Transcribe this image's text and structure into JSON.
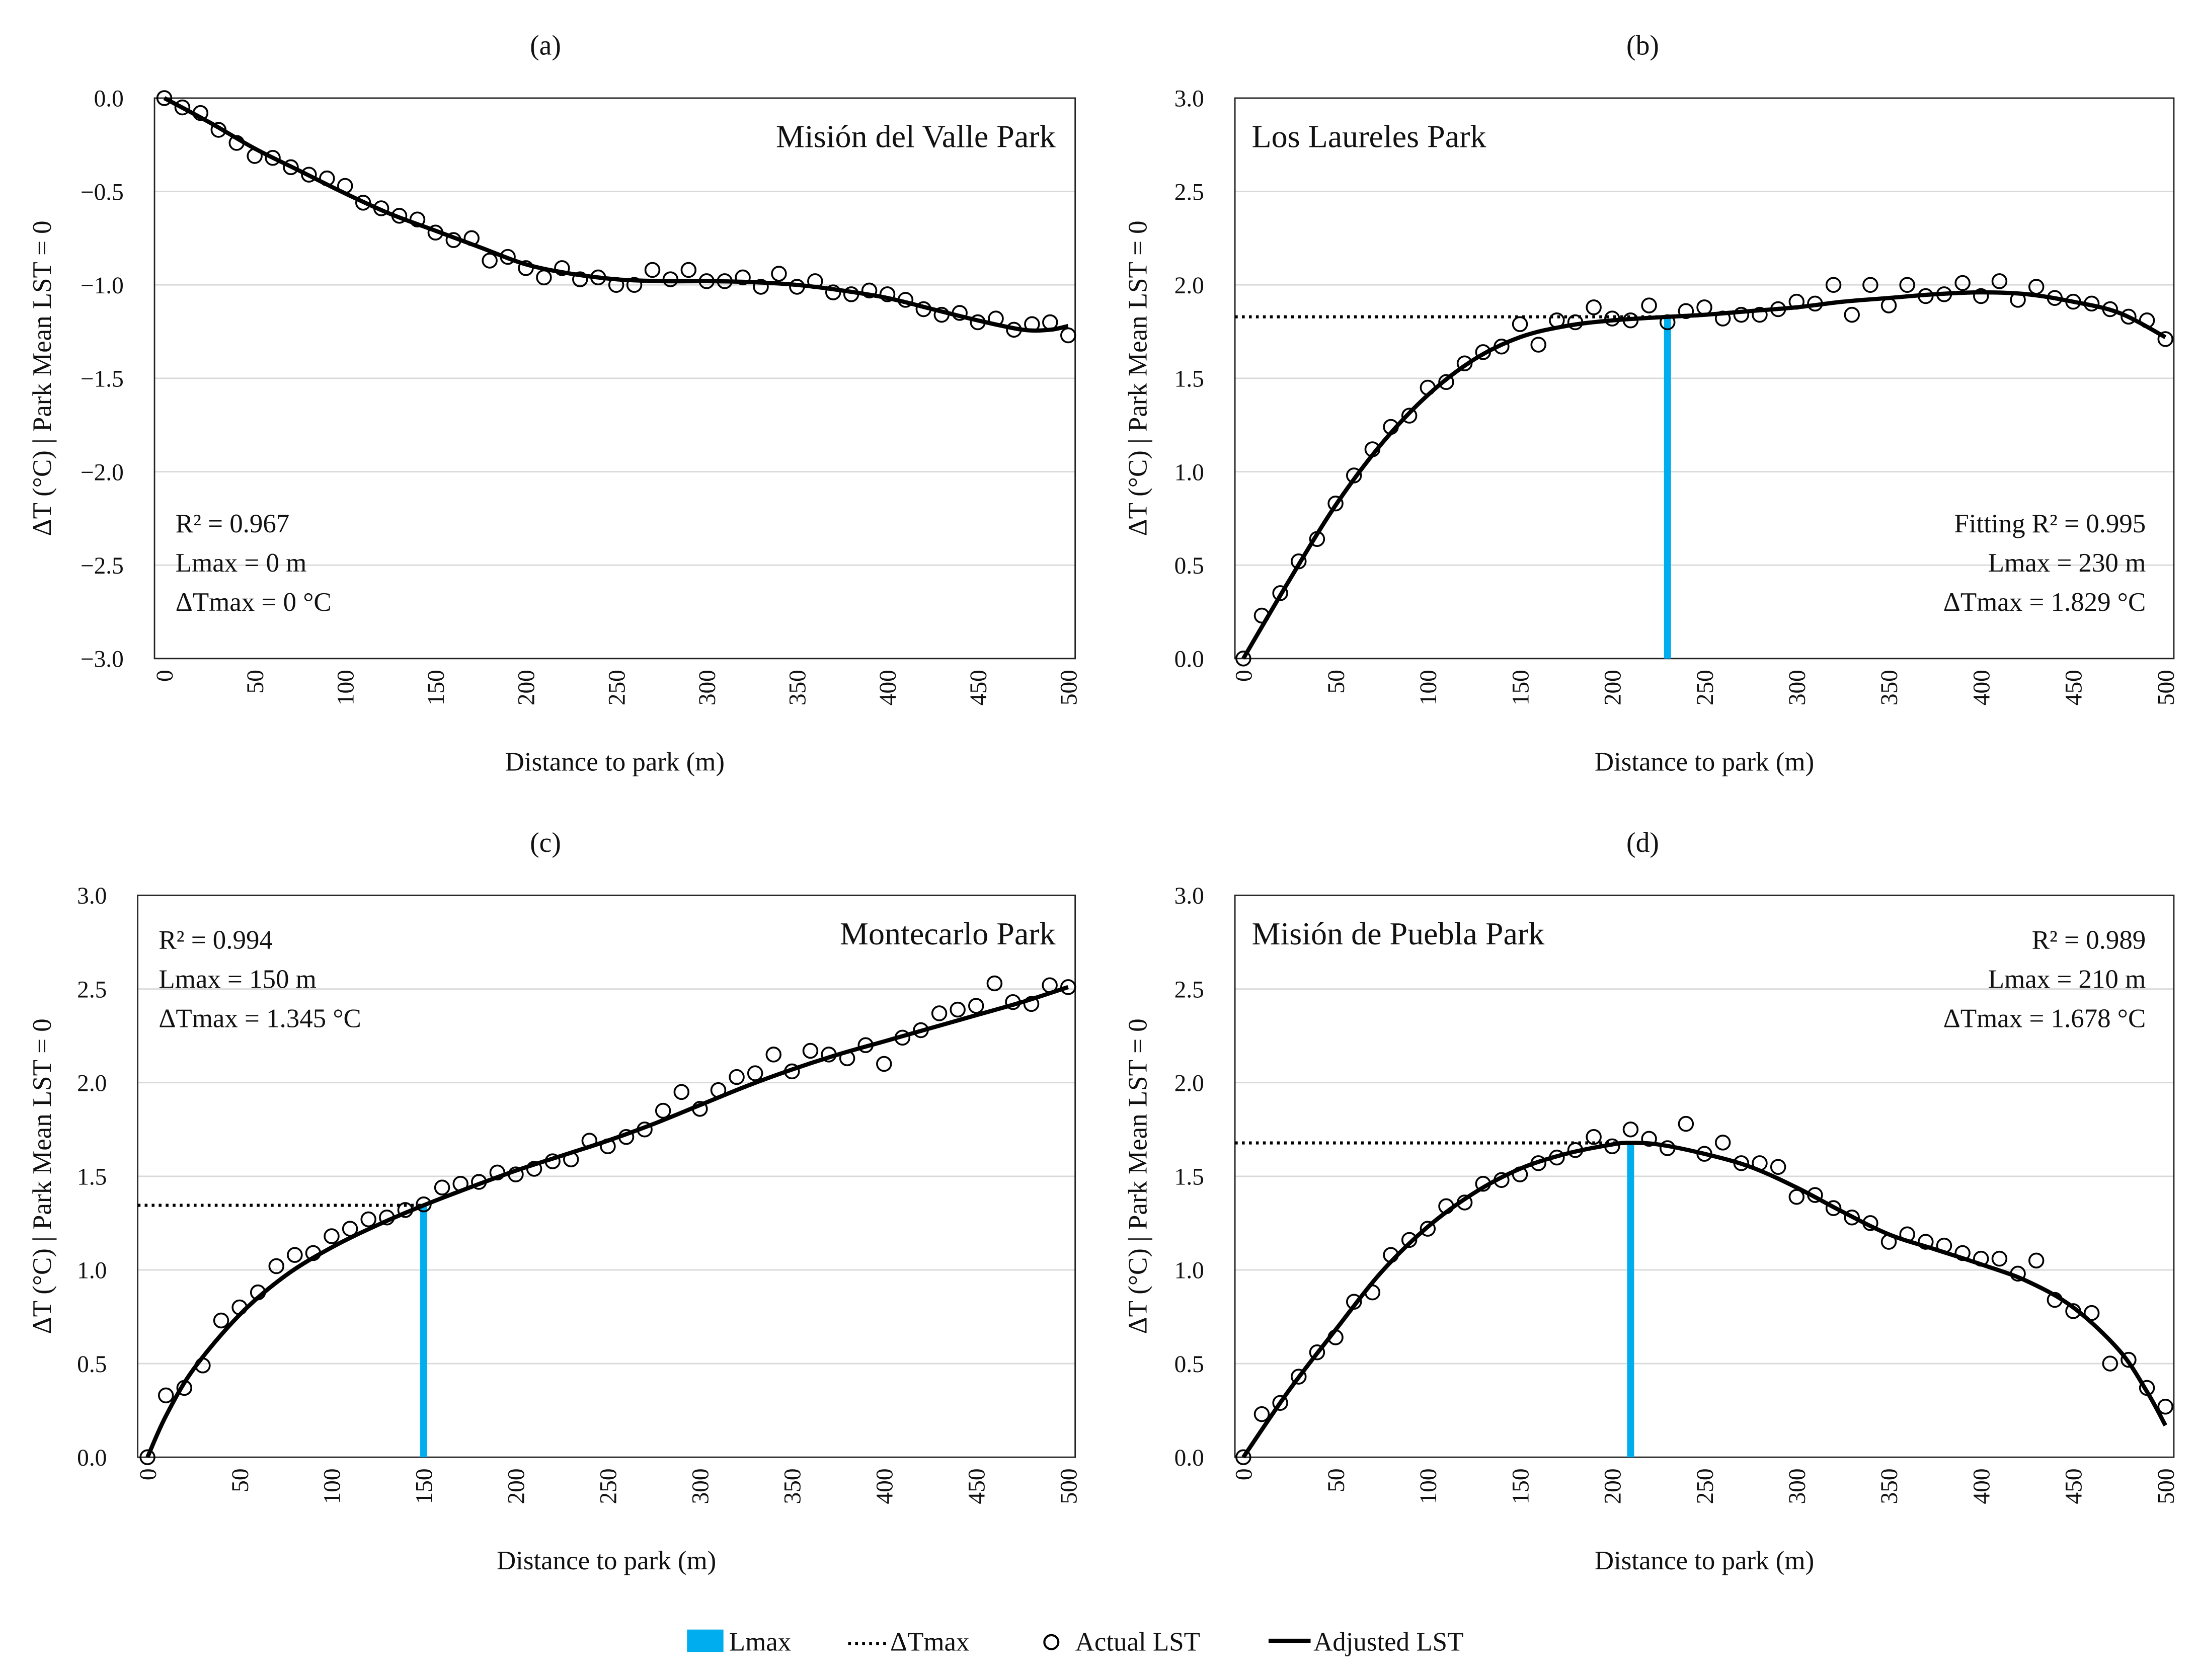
{
  "colors": {
    "lmax": "#00AEEF",
    "line": "#000000",
    "grid": "#D9D9D9"
  },
  "legend": [
    {
      "label": "Lmax",
      "kind": "bar"
    },
    {
      "label": "ΔTmax",
      "kind": "dotted"
    },
    {
      "label": "Actual LST",
      "kind": "marker"
    },
    {
      "label": "Adjusted LST",
      "kind": "line"
    }
  ],
  "chart_data": [
    {
      "type": "scatter",
      "panel": "(a)",
      "title": "Misión del Valle Park",
      "xlabel": "Distance to park (m)",
      "ylabel": "ΔT (°C) | Park Mean LST = 0",
      "xlim": [
        0,
        500
      ],
      "ylim": [
        -3.0,
        0.0
      ],
      "xticks": [
        "0",
        "50",
        "100",
        "150",
        "200",
        "250",
        "300",
        "350",
        "400",
        "450",
        "500"
      ],
      "yticks": [
        "0.0",
        "−0.5",
        "−1.0",
        "−1.5",
        "−2.0",
        "−2.5",
        "−3.0"
      ],
      "ytick_values": [
        0,
        -0.5,
        -1,
        -1.5,
        -2,
        -2.5,
        -3
      ],
      "stats": [
        "R² = 0.967",
        "Lmax = 0 m",
        "ΔTmax = 0 °C"
      ],
      "stats_position": "bottom-left",
      "title_position": "top-right",
      "lmax": 0,
      "dtmax": 0,
      "show_lmax": false,
      "x_step": 10,
      "actual": [
        0,
        -0.05,
        -0.08,
        -0.17,
        -0.24,
        -0.31,
        -0.32,
        -0.37,
        -0.41,
        -0.43,
        -0.47,
        -0.56,
        -0.59,
        -0.63,
        -0.65,
        -0.72,
        -0.76,
        -0.75,
        -0.87,
        -0.85,
        -0.91,
        -0.96,
        -0.91,
        -0.97,
        -0.96,
        -1.0,
        -1.0,
        -0.92,
        -0.97,
        -0.92,
        -0.98,
        -0.98,
        -0.96,
        -1.01,
        -0.94,
        -1.01,
        -0.98,
        -1.04,
        -1.05,
        -1.03,
        -1.05,
        -1.08,
        -1.13,
        -1.16,
        -1.15,
        -1.2,
        -1.18,
        -1.24,
        -1.21,
        -1.2,
        -1.27
      ],
      "fit_x": [
        0,
        25,
        50,
        75,
        100,
        125,
        150,
        175,
        200,
        225,
        250,
        275,
        300,
        325,
        350,
        375,
        400,
        425,
        450,
        475,
        490,
        500
      ],
      "fit_y": [
        0,
        -0.13,
        -0.27,
        -0.39,
        -0.51,
        -0.62,
        -0.71,
        -0.8,
        -0.89,
        -0.94,
        -0.97,
        -0.98,
        -0.98,
        -0.985,
        -1.0,
        -1.03,
        -1.07,
        -1.13,
        -1.19,
        -1.24,
        -1.24,
        -1.22
      ]
    },
    {
      "type": "scatter",
      "panel": "(b)",
      "title": "Los Laureles Park",
      "xlabel": "Distance to park (m)",
      "ylabel": "ΔT (°C) | Park Mean LST = 0",
      "xlim": [
        0,
        500
      ],
      "ylim": [
        0,
        3.0
      ],
      "xticks": [
        "0",
        "50",
        "100",
        "150",
        "200",
        "250",
        "300",
        "350",
        "400",
        "450",
        "500"
      ],
      "yticks": [
        "3.0",
        "2.5",
        "2.0",
        "1.5",
        "1.0",
        "0.5",
        "0.0"
      ],
      "ytick_values": [
        3,
        2.5,
        2,
        1.5,
        1,
        0.5,
        0
      ],
      "stats": [
        "Fitting R² = 0.995",
        "Lmax = 230 m",
        "ΔTmax = 1.829 °C"
      ],
      "stats_position": "bottom-right",
      "title_position": "top-left",
      "lmax": 230,
      "dtmax": 1.829,
      "show_lmax": true,
      "x_step": 10,
      "actual": [
        0,
        0.23,
        0.35,
        0.52,
        0.64,
        0.83,
        0.98,
        1.12,
        1.24,
        1.3,
        1.45,
        1.48,
        1.58,
        1.64,
        1.67,
        1.79,
        1.68,
        1.81,
        1.8,
        1.88,
        1.82,
        1.81,
        1.89,
        1.8,
        1.86,
        1.88,
        1.82,
        1.84,
        1.84,
        1.87,
        1.91,
        1.9,
        2.0,
        1.84,
        2.0,
        1.89,
        2.0,
        1.94,
        1.95,
        2.01,
        1.94,
        2.02,
        1.92,
        1.99,
        1.93,
        1.91,
        1.9,
        1.87,
        1.83,
        1.81,
        1.71
      ],
      "fit_x": [
        0,
        25,
        50,
        75,
        100,
        125,
        150,
        175,
        200,
        230,
        250,
        275,
        300,
        325,
        350,
        375,
        400,
        425,
        450,
        475,
        500
      ],
      "fit_y": [
        0,
        0.42,
        0.82,
        1.15,
        1.41,
        1.6,
        1.72,
        1.78,
        1.81,
        1.829,
        1.84,
        1.86,
        1.88,
        1.91,
        1.93,
        1.95,
        1.96,
        1.95,
        1.91,
        1.85,
        1.72
      ]
    },
    {
      "type": "scatter",
      "panel": "(c)",
      "title": "Montecarlo Park",
      "xlabel": "Distance to park (m)",
      "ylabel": "ΔT (°C) | Park Mean LST = 0",
      "xlim": [
        0,
        500
      ],
      "ylim": [
        0,
        3.0
      ],
      "xticks": [
        "0",
        "50",
        "100",
        "150",
        "200",
        "250",
        "300",
        "350",
        "400",
        "450",
        "500"
      ],
      "yticks": [
        "3.0",
        "2.5",
        "2.0",
        "1.5",
        "1.0",
        "0.5",
        "0.0"
      ],
      "ytick_values": [
        3,
        2.5,
        2,
        1.5,
        1,
        0.5,
        0
      ],
      "stats": [
        "R² = 0.994",
        "Lmax = 150 m",
        "ΔTmax = 1.345 °C"
      ],
      "stats_position": "top-left",
      "title_position": "top-right",
      "lmax": 150,
      "dtmax": 1.345,
      "show_lmax": true,
      "x_step": 10,
      "actual": [
        0,
        0.33,
        0.37,
        0.49,
        0.73,
        0.8,
        0.88,
        1.02,
        1.08,
        1.09,
        1.18,
        1.22,
        1.27,
        1.28,
        1.32,
        1.35,
        1.44,
        1.46,
        1.47,
        1.52,
        1.51,
        1.54,
        1.58,
        1.59,
        1.69,
        1.66,
        1.71,
        1.75,
        1.85,
        1.95,
        1.86,
        1.96,
        2.03,
        2.05,
        2.15,
        2.06,
        2.17,
        2.15,
        2.13,
        2.2,
        2.1,
        2.24,
        2.28,
        2.37,
        2.39,
        2.41,
        2.53,
        2.43,
        2.42,
        2.52,
        2.51
      ],
      "fit_x": [
        0,
        10,
        25,
        50,
        75,
        100,
        125,
        150,
        175,
        200,
        225,
        250,
        275,
        300,
        325,
        350,
        375,
        400,
        425,
        450,
        475,
        500
      ],
      "fit_y": [
        0,
        0.22,
        0.47,
        0.76,
        0.97,
        1.12,
        1.24,
        1.345,
        1.44,
        1.53,
        1.61,
        1.69,
        1.78,
        1.88,
        1.98,
        2.07,
        2.15,
        2.22,
        2.29,
        2.36,
        2.43,
        2.51
      ]
    },
    {
      "type": "scatter",
      "panel": "(d)",
      "title": "Misión de Puebla Park",
      "xlabel": "Distance to park (m)",
      "ylabel": "ΔT (°C) | Park Mean LST = 0",
      "xlim": [
        0,
        500
      ],
      "ylim": [
        0,
        3.0
      ],
      "xticks": [
        "0",
        "50",
        "100",
        "150",
        "200",
        "250",
        "300",
        "350",
        "400",
        "450",
        "500"
      ],
      "yticks": [
        "3.0",
        "2.5",
        "2.0",
        "1.5",
        "1.0",
        "0.5",
        "0.0"
      ],
      "ytick_values": [
        3,
        2.5,
        2,
        1.5,
        1,
        0.5,
        0
      ],
      "stats": [
        "R² = 0.989",
        "Lmax = 210 m",
        "ΔTmax = 1.678 °C"
      ],
      "stats_position": "top-right",
      "title_position": "top-left",
      "lmax": 210,
      "dtmax": 1.678,
      "show_lmax": true,
      "x_step": 10,
      "actual": [
        0,
        0.23,
        0.29,
        0.43,
        0.56,
        0.64,
        0.83,
        0.88,
        1.08,
        1.16,
        1.22,
        1.34,
        1.36,
        1.46,
        1.48,
        1.51,
        1.57,
        1.6,
        1.64,
        1.71,
        1.66,
        1.75,
        1.7,
        1.65,
        1.78,
        1.62,
        1.68,
        1.57,
        1.57,
        1.55,
        1.39,
        1.4,
        1.33,
        1.28,
        1.25,
        1.15,
        1.19,
        1.15,
        1.13,
        1.09,
        1.06,
        1.06,
        0.98,
        1.05,
        0.84,
        0.78,
        0.77,
        0.5,
        0.52,
        0.37,
        0.27
      ],
      "fit_x": [
        0,
        25,
        50,
        75,
        100,
        125,
        150,
        175,
        200,
        210,
        225,
        250,
        275,
        300,
        325,
        350,
        375,
        400,
        425,
        450,
        475,
        490,
        500
      ],
      "fit_y": [
        0,
        0.36,
        0.68,
        0.99,
        1.23,
        1.41,
        1.54,
        1.62,
        1.67,
        1.678,
        1.67,
        1.62,
        1.55,
        1.44,
        1.31,
        1.19,
        1.11,
        1.03,
        0.94,
        0.8,
        0.57,
        0.35,
        0.17
      ]
    }
  ]
}
